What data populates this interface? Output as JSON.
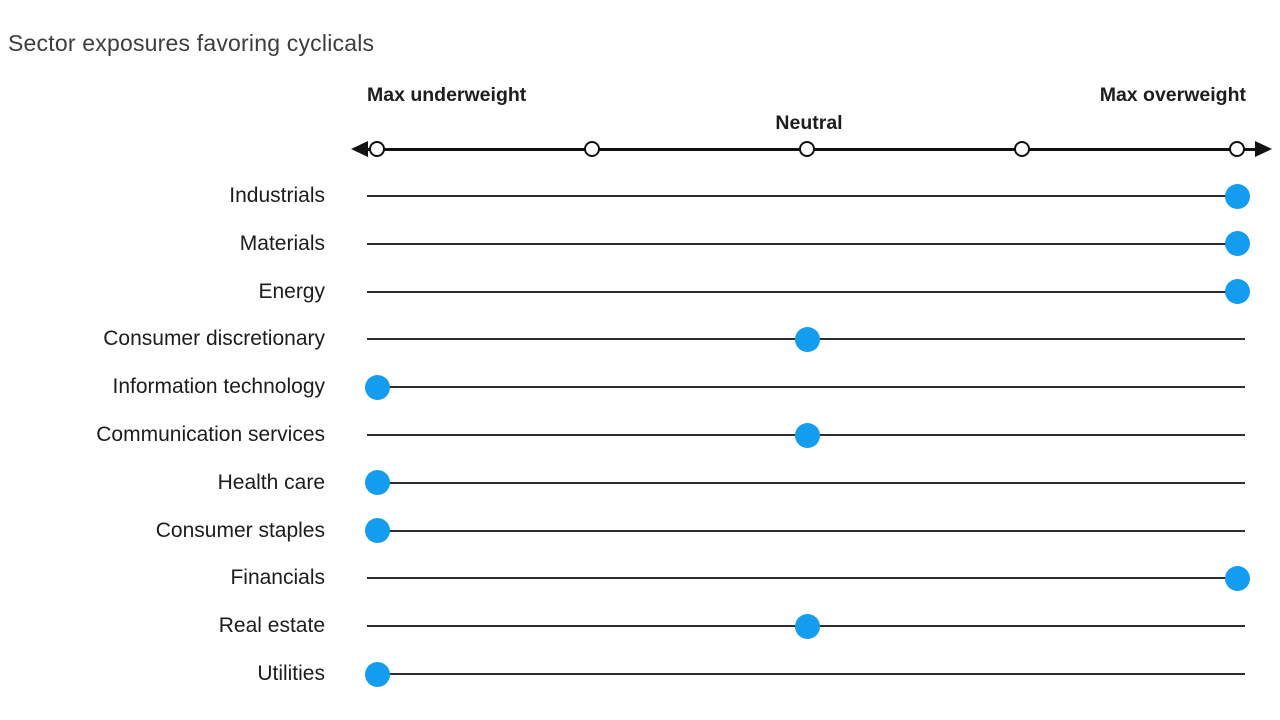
{
  "page": {
    "title": "Sector exposures favoring cyclicals"
  },
  "colors": {
    "dot_blue": "#149DEF",
    "axis_black": "#111111",
    "row_line_gray": "#2e2e2e",
    "title_text": "#3d3d3d",
    "label_text": "#1c1c1c"
  },
  "chart_data": {
    "type": "scatter",
    "subtype": "dot-plot-positioning",
    "title": "Sector exposures favoring cyclicals",
    "axis": {
      "min_label": "Max underweight",
      "mid_label": "Neutral",
      "max_label": "Max overweight",
      "range": [
        -2,
        2
      ],
      "tick_positions": [
        -2,
        -1,
        0,
        1,
        2
      ],
      "grid": false
    },
    "categories": [
      "Industrials",
      "Materials",
      "Energy",
      "Consumer discretionary",
      "Information technology",
      "Communication services",
      "Health care",
      "Consumer staples",
      "Financials",
      "Real estate",
      "Utilities"
    ],
    "values": [
      2,
      2,
      2,
      0,
      -2,
      0,
      -2,
      -2,
      2,
      0,
      -2
    ],
    "value_legend": {
      "-2": "Max underweight",
      "0": "Neutral",
      "2": "Max overweight"
    }
  }
}
